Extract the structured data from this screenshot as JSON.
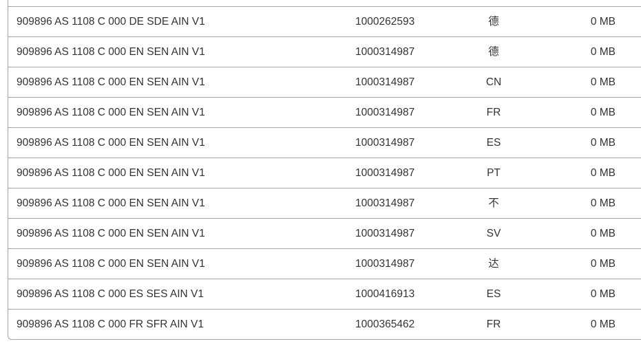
{
  "table": {
    "rows": [
      {
        "name": "909896 AS 1108 C 000 DE SDE AIN V1",
        "id": "1000262593",
        "lang": "德",
        "size": "0 MB"
      },
      {
        "name": "909896 AS 1108 C 000 EN SEN AIN V1",
        "id": "1000314987",
        "lang": "德",
        "size": "0 MB"
      },
      {
        "name": "909896 AS 1108 C 000 EN SEN AIN V1",
        "id": "1000314987",
        "lang": "CN",
        "size": "0 MB"
      },
      {
        "name": "909896 AS 1108 C 000 EN SEN AIN V1",
        "id": "1000314987",
        "lang": "FR",
        "size": "0 MB"
      },
      {
        "name": "909896 AS 1108 C 000 EN SEN AIN V1",
        "id": "1000314987",
        "lang": "ES",
        "size": "0 MB"
      },
      {
        "name": "909896 AS 1108 C 000 EN SEN AIN V1",
        "id": "1000314987",
        "lang": "PT",
        "size": "0 MB"
      },
      {
        "name": "909896 AS 1108 C 000 EN SEN AIN V1",
        "id": "1000314987",
        "lang": "不",
        "size": "0 MB"
      },
      {
        "name": "909896 AS 1108 C 000 EN SEN AIN V1",
        "id": "1000314987",
        "lang": "SV",
        "size": "0 MB"
      },
      {
        "name": "909896 AS 1108 C 000 EN SEN AIN V1",
        "id": "1000314987",
        "lang": "达",
        "size": "0 MB"
      },
      {
        "name": "909896 AS 1108 C 000 ES SES AIN V1",
        "id": "1000416913",
        "lang": "ES",
        "size": "0 MB"
      },
      {
        "name": "909896 AS 1108 C 000 FR SFR AIN V1",
        "id": "1000365462",
        "lang": "FR",
        "size": "0 MB"
      }
    ]
  }
}
